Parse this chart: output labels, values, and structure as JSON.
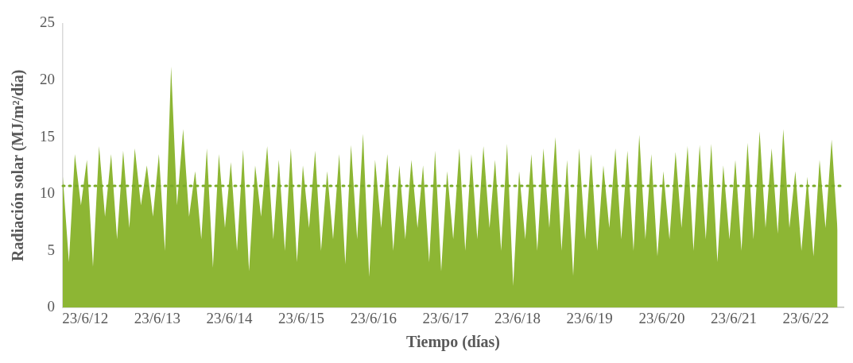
{
  "chart_data": {
    "type": "area",
    "xlabel": "Tiempo (días)",
    "ylabel": "Radiación solar (MJ/m²/día)",
    "x": [
      "2012-03",
      "2012-04",
      "2012-05",
      "2012-06",
      "2012-07",
      "2012-08",
      "2012-09",
      "2012-10",
      "2012-11",
      "2012-12",
      "2013-01",
      "2013-02",
      "2013-03",
      "2013-04",
      "2013-05",
      "2013-06",
      "2013-07",
      "2013-08",
      "2013-09",
      "2013-10",
      "2013-11",
      "2013-12",
      "2014-01",
      "2014-02",
      "2014-03",
      "2014-04",
      "2014-05",
      "2014-06",
      "2014-07",
      "2014-08",
      "2014-09",
      "2014-10",
      "2014-11",
      "2014-12",
      "2015-01",
      "2015-02",
      "2015-03",
      "2015-04",
      "2015-05",
      "2015-06",
      "2015-07",
      "2015-08",
      "2015-09",
      "2015-10",
      "2015-11",
      "2015-12",
      "2016-01",
      "2016-02",
      "2016-03",
      "2016-04",
      "2016-05",
      "2016-06",
      "2016-07",
      "2016-08",
      "2016-09",
      "2016-10",
      "2016-11",
      "2016-12",
      "2017-01",
      "2017-02",
      "2017-03",
      "2017-04",
      "2017-05",
      "2017-06",
      "2017-07",
      "2017-08",
      "2017-09",
      "2017-10",
      "2017-11",
      "2017-12",
      "2018-01",
      "2018-02",
      "2018-03",
      "2018-04",
      "2018-05",
      "2018-06",
      "2018-07",
      "2018-08",
      "2018-09",
      "2018-10",
      "2018-11",
      "2018-12",
      "2019-01",
      "2019-02",
      "2019-03",
      "2019-04",
      "2019-05",
      "2019-06",
      "2019-07",
      "2019-08",
      "2019-09",
      "2019-10",
      "2019-11",
      "2019-12",
      "2020-01",
      "2020-02",
      "2020-03",
      "2020-04",
      "2020-05",
      "2020-06",
      "2020-07",
      "2020-08",
      "2020-09",
      "2020-10",
      "2020-11",
      "2020-12",
      "2021-01",
      "2021-02",
      "2021-03",
      "2021-04",
      "2021-05",
      "2021-06",
      "2021-07",
      "2021-08",
      "2021-09",
      "2021-10",
      "2021-11",
      "2021-12",
      "2022-01",
      "2022-02",
      "2022-03",
      "2022-04",
      "2022-05",
      "2022-06",
      "2022-07",
      "2022-08",
      "2022-09",
      "2022-10",
      "2022-11",
      "2022-12"
    ],
    "series": [
      {
        "color": "#8db634",
        "values": [
          11.5,
          4,
          13.5,
          9,
          13,
          3.6,
          14.2,
          8,
          13.5,
          6,
          13.8,
          7,
          14,
          9,
          12.5,
          8,
          13.5,
          5,
          21.2,
          9,
          15.7,
          8,
          12,
          6,
          14,
          3.5,
          13.5,
          7,
          12.8,
          5,
          13.9,
          3.2,
          12.5,
          8,
          14.2,
          6,
          13,
          5,
          14,
          4,
          12.5,
          7,
          13.8,
          5,
          12,
          6,
          13.5,
          3.8,
          14.3,
          6,
          15.3,
          2.7,
          13,
          7,
          13.5,
          5,
          12.5,
          6,
          13,
          7,
          12.5,
          4,
          13.8,
          3.2,
          12,
          6,
          14,
          5,
          13.5,
          6,
          14.2,
          7,
          13,
          5,
          14.4,
          1.9,
          12,
          6,
          13.5,
          5,
          14,
          7,
          15,
          5,
          13,
          2.8,
          14,
          6,
          13.5,
          5,
          12.5,
          7,
          14,
          6,
          13.8,
          5,
          15.2,
          6,
          13.5,
          4.5,
          12,
          6,
          13.7,
          7,
          14.2,
          5,
          14.3,
          6,
          14.4,
          4,
          12.5,
          6,
          13,
          5,
          14.5,
          6,
          15.5,
          7,
          14,
          6.5,
          15.7,
          7,
          12,
          5,
          11.5,
          4.5,
          13,
          7,
          14.8,
          6.8
        ]
      }
    ],
    "xlim": [
      "2012-03-01",
      "2022-12-31"
    ],
    "xticks": [
      {
        "value": "2012-06-23",
        "label": "23/6/12"
      },
      {
        "value": "2013-06-23",
        "label": "23/6/13"
      },
      {
        "value": "2014-06-23",
        "label": "23/6/14"
      },
      {
        "value": "2015-06-23",
        "label": "23/6/15"
      },
      {
        "value": "2016-06-23",
        "label": "23/6/16"
      },
      {
        "value": "2017-06-23",
        "label": "23/6/17"
      },
      {
        "value": "2018-06-23",
        "label": "23/6/18"
      },
      {
        "value": "2019-06-23",
        "label": "23/6/19"
      },
      {
        "value": "2020-06-23",
        "label": "23/6/20"
      },
      {
        "value": "2021-06-23",
        "label": "23/6/21"
      },
      {
        "value": "2022-06-23",
        "label": "23/6/22"
      }
    ],
    "ylim": [
      0,
      25
    ],
    "yticks": [
      0,
      5,
      10,
      15,
      20,
      25
    ],
    "ref_lines": [
      {
        "axis": "y",
        "value": 10.7,
        "color": "#7aab28",
        "line_style": "dotted"
      }
    ]
  }
}
